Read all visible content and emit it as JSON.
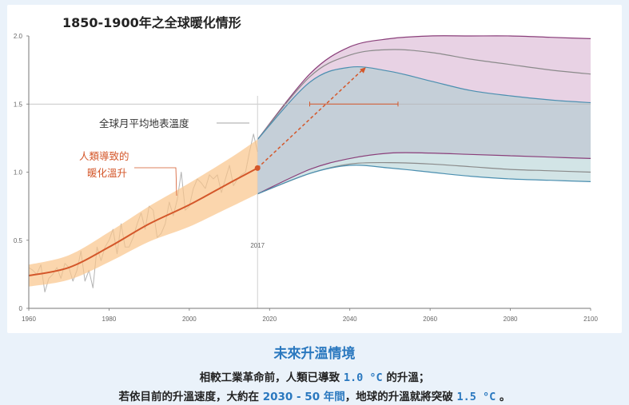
{
  "title": "1850-1900年之全球暖化情形",
  "chart_data": {
    "type": "line",
    "title": "1850-1900年之全球暖化情形",
    "xlim": [
      1960,
      2100
    ],
    "ylim": [
      0,
      2.0
    ],
    "x_ticks": [
      1960,
      1980,
      2000,
      2020,
      2040,
      2060,
      2080,
      2100
    ],
    "y_ticks": [
      {
        "value": 0,
        "label": "0"
      },
      {
        "value": 0.5,
        "label": "0.5"
      },
      {
        "value": 1.0,
        "label": "1.0"
      },
      {
        "value": 1.5,
        "label": "1.5"
      },
      {
        "value": 2.0,
        "label": "2.0"
      }
    ],
    "reference_line_y": 1.5,
    "marker_year_label": "2017",
    "observed_series": {
      "name": "全球月平均地表溫度",
      "color": "#b3b3b3",
      "x": [
        1960,
        1961,
        1962,
        1963,
        1964,
        1965,
        1966,
        1967,
        1968,
        1969,
        1970,
        1971,
        1972,
        1973,
        1974,
        1975,
        1976,
        1977,
        1978,
        1979,
        1980,
        1981,
        1982,
        1983,
        1984,
        1985,
        1986,
        1987,
        1988,
        1989,
        1990,
        1991,
        1992,
        1993,
        1994,
        1995,
        1996,
        1997,
        1998,
        1999,
        2000,
        2001,
        2002,
        2003,
        2004,
        2005,
        2006,
        2007,
        2008,
        2009,
        2010,
        2011,
        2012,
        2013,
        2014,
        2015,
        2016,
        2017
      ],
      "y": [
        0.3,
        0.28,
        0.25,
        0.32,
        0.12,
        0.22,
        0.25,
        0.3,
        0.22,
        0.33,
        0.3,
        0.2,
        0.28,
        0.42,
        0.2,
        0.28,
        0.15,
        0.45,
        0.35,
        0.45,
        0.5,
        0.58,
        0.4,
        0.62,
        0.45,
        0.45,
        0.52,
        0.62,
        0.7,
        0.58,
        0.75,
        0.72,
        0.52,
        0.55,
        0.62,
        0.78,
        0.68,
        0.8,
        1.0,
        0.72,
        0.75,
        0.88,
        0.95,
        0.92,
        0.88,
        0.98,
        0.95,
        0.98,
        0.85,
        0.95,
        1.05,
        0.9,
        0.95,
        0.98,
        1.0,
        1.15,
        1.28,
        1.15
      ]
    },
    "human_induced": {
      "name": "人類導致的暖化溫升",
      "color": "#d4572a",
      "band_color": "#f9c58a",
      "x": [
        1960,
        1970,
        1980,
        1990,
        2000,
        2010,
        2017
      ],
      "y": [
        0.24,
        0.3,
        0.45,
        0.62,
        0.76,
        0.92,
        1.03
      ],
      "lower": [
        0.16,
        0.21,
        0.34,
        0.49,
        0.6,
        0.74,
        0.84
      ],
      "upper": [
        0.32,
        0.39,
        0.56,
        0.75,
        0.92,
        1.1,
        1.24
      ]
    },
    "projection": {
      "x": [
        2017,
        2030,
        2040,
        2050,
        2060,
        2070,
        2080,
        2090,
        2100
      ],
      "fill_color": "#c5cfd8",
      "upper_fill_color": "#e8d2e4",
      "lower_fill_color": "#d2e4e6",
      "upper_lines": [
        {
          "color": "#8a3f7a",
          "y": [
            1.24,
            1.72,
            1.92,
            1.98,
            2.0,
            2.0,
            2.0,
            1.99,
            1.98
          ]
        },
        {
          "color": "#8a8a8a",
          "y": [
            1.24,
            1.7,
            1.86,
            1.9,
            1.88,
            1.83,
            1.79,
            1.75,
            1.72
          ]
        },
        {
          "color": "#4b8fb0",
          "y": [
            1.24,
            1.66,
            1.77,
            1.74,
            1.67,
            1.6,
            1.56,
            1.53,
            1.51
          ]
        }
      ],
      "lower_lines": [
        {
          "color": "#8a3f7a",
          "y": [
            0.84,
            1.02,
            1.1,
            1.14,
            1.14,
            1.13,
            1.12,
            1.11,
            1.1
          ]
        },
        {
          "color": "#8a8a8a",
          "y": [
            0.84,
            0.99,
            1.06,
            1.07,
            1.06,
            1.04,
            1.02,
            1.01,
            1.0
          ]
        },
        {
          "color": "#4b8fb0",
          "y": [
            0.84,
            0.99,
            1.05,
            1.03,
            1.0,
            0.97,
            0.95,
            0.94,
            0.93
          ]
        }
      ]
    },
    "dashed_arrow": {
      "color": "#d4572a",
      "from": [
        2017,
        1.03
      ],
      "to": [
        2044,
        1.77
      ]
    },
    "range_bar": {
      "color": "#d4572a",
      "x": [
        2030,
        2052
      ],
      "y": 1.5
    },
    "annotations": {
      "observed_label": "全球月平均地表溫度",
      "human_label_line1": "人類導致的",
      "human_label_line2": "暖化溫升"
    }
  },
  "caption": {
    "heading": "未來升溫情境",
    "line1_a": "相較工業革命前，人類已導致 ",
    "line1_value": "1.0 °C",
    "line1_b": " 的升溫；",
    "line2_a": "若依目前的升溫速度，大約在 ",
    "line2_value": "2030 - 50 年間",
    "line2_b": "，地球的升溫就將突破 ",
    "line2_value2": "1.5 °C",
    "line2_c": " 。"
  }
}
